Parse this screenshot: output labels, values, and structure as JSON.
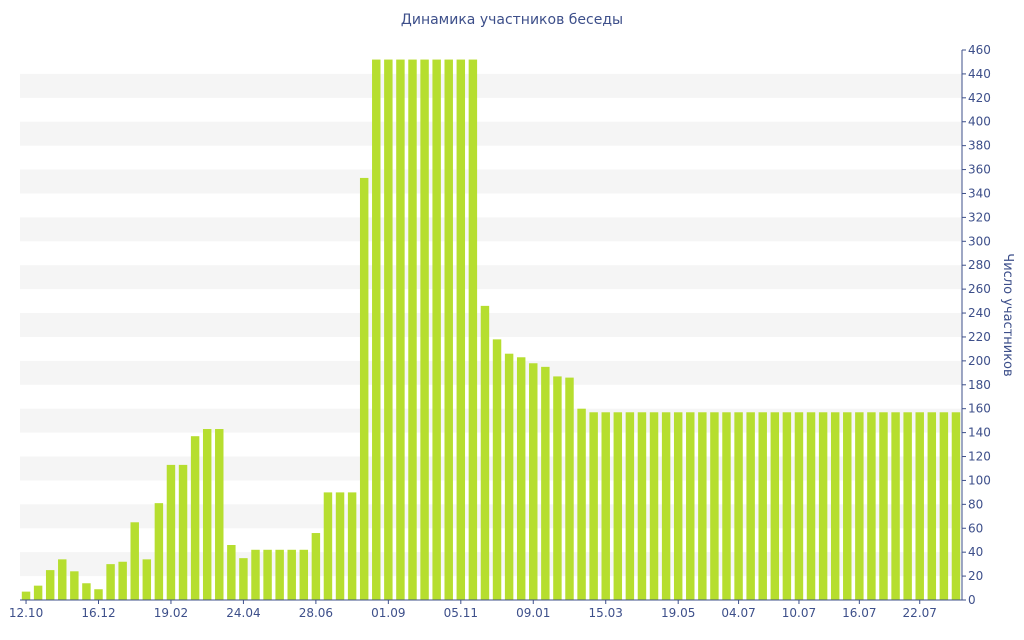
{
  "chart_data": {
    "type": "bar",
    "title": "Динамика участников беседы",
    "xlabel": "",
    "ylabel": "Число участников",
    "ylim": [
      0,
      460
    ],
    "y_ticks": [
      0,
      20,
      40,
      60,
      80,
      100,
      120,
      140,
      160,
      180,
      200,
      220,
      240,
      260,
      280,
      300,
      320,
      340,
      360,
      380,
      400,
      420,
      440,
      460
    ],
    "y_axis_side": "right",
    "grid": "alternating horizontal bands",
    "colors": {
      "bar": "#b6de2f",
      "band": "#f5f5f5",
      "text": "#3d4f8a",
      "axis": "#3d4f8a"
    },
    "x_tick_labels": [
      {
        "index": 0,
        "label": "12.10"
      },
      {
        "index": 6,
        "label": "16.12"
      },
      {
        "index": 12,
        "label": "19.02"
      },
      {
        "index": 18,
        "label": "24.04"
      },
      {
        "index": 24,
        "label": "28.06"
      },
      {
        "index": 30,
        "label": "01.09"
      },
      {
        "index": 36,
        "label": "05.11"
      },
      {
        "index": 42,
        "label": "09.01"
      },
      {
        "index": 48,
        "label": "15.03"
      },
      {
        "index": 54,
        "label": "19.05"
      },
      {
        "index": 59,
        "label": "04.07"
      },
      {
        "index": 64,
        "label": "10.07"
      },
      {
        "index": 69,
        "label": "16.07"
      },
      {
        "index": 74,
        "label": "22.07"
      }
    ],
    "values": [
      7,
      12,
      25,
      34,
      24,
      14,
      9,
      30,
      32,
      65,
      34,
      81,
      113,
      113,
      137,
      143,
      143,
      46,
      35,
      42,
      42,
      42,
      42,
      42,
      56,
      90,
      90,
      90,
      353,
      452,
      452,
      452,
      452,
      452,
      452,
      452,
      452,
      452,
      246,
      218,
      206,
      203,
      198,
      195,
      187,
      186,
      160,
      157,
      157,
      157,
      157,
      157,
      157,
      157,
      157,
      157,
      157,
      157,
      157,
      157,
      157,
      157,
      157,
      157,
      157,
      157,
      157,
      157,
      157,
      157,
      157,
      157,
      157,
      157,
      157,
      157,
      157,
      157
    ]
  }
}
